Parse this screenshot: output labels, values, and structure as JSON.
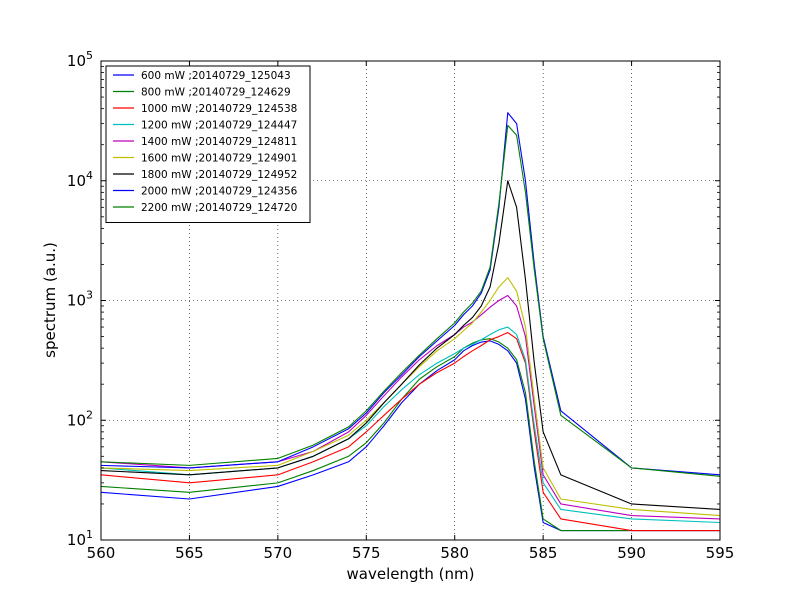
{
  "chart_data": {
    "type": "line",
    "title": "",
    "xlabel": "wavelength (nm)",
    "ylabel": "spectrum (a.u.)",
    "xlim": [
      560,
      595
    ],
    "ylim": [
      10,
      100000
    ],
    "yscale": "log",
    "grid": true,
    "legend_position": "top-left",
    "x_ticks": [
      560,
      565,
      570,
      575,
      580,
      585,
      590,
      595
    ],
    "y_ticks": [
      {
        "base": "10",
        "exp": "1",
        "value": 10
      },
      {
        "base": "10",
        "exp": "2",
        "value": 100
      },
      {
        "base": "10",
        "exp": "3",
        "value": 1000
      },
      {
        "base": "10",
        "exp": "4",
        "value": 10000
      },
      {
        "base": "10",
        "exp": "5",
        "value": 100000
      }
    ],
    "series": [
      {
        "name": "600 mW ;20140729_125043",
        "color": "#0000ff",
        "x": [
          560,
          565,
          570,
          572,
          574,
          575,
          576,
          577,
          578,
          579,
          580,
          580.5,
          581,
          581.5,
          582,
          582.5,
          583,
          583.5,
          584,
          584.5,
          585,
          586,
          590,
          595
        ],
        "y": [
          25,
          22,
          28,
          35,
          45,
          60,
          90,
          140,
          200,
          260,
          320,
          380,
          420,
          450,
          460,
          430,
          380,
          300,
          150,
          40,
          14,
          12,
          12,
          12
        ]
      },
      {
        "name": "800 mW ;20140729_124629",
        "color": "#008000",
        "x": [
          560,
          565,
          570,
          572,
          574,
          575,
          576,
          577,
          578,
          579,
          580,
          580.5,
          581,
          581.5,
          582,
          582.5,
          583,
          583.5,
          584,
          584.5,
          585,
          586,
          590,
          595
        ],
        "y": [
          28,
          25,
          30,
          38,
          50,
          65,
          95,
          150,
          220,
          280,
          340,
          400,
          440,
          470,
          480,
          450,
          400,
          320,
          170,
          45,
          15,
          12,
          12,
          12
        ]
      },
      {
        "name": "1000 mW ;20140729_124538",
        "color": "#ff0000",
        "x": [
          560,
          565,
          570,
          572,
          574,
          575,
          576,
          577,
          578,
          579,
          580,
          580.5,
          581,
          581.5,
          582,
          582.5,
          583,
          583.5,
          584,
          584.5,
          585,
          586,
          590,
          595
        ],
        "y": [
          35,
          30,
          35,
          45,
          60,
          80,
          110,
          150,
          200,
          250,
          300,
          340,
          380,
          420,
          470,
          500,
          540,
          480,
          300,
          80,
          25,
          15,
          12,
          12
        ]
      },
      {
        "name": "1200 mW ;20140729_124447",
        "color": "#00bfbf",
        "x": [
          560,
          565,
          570,
          572,
          574,
          575,
          576,
          577,
          578,
          579,
          580,
          580.5,
          581,
          581.5,
          582,
          582.5,
          583,
          583.5,
          584,
          584.5,
          585,
          586,
          590,
          595
        ],
        "y": [
          40,
          35,
          40,
          50,
          70,
          90,
          130,
          180,
          240,
          300,
          360,
          400,
          430,
          470,
          520,
          570,
          600,
          520,
          320,
          90,
          30,
          18,
          15,
          14
        ]
      },
      {
        "name": "1400 mW ;20140729_124811",
        "color": "#bf00bf",
        "x": [
          560,
          565,
          570,
          572,
          574,
          575,
          576,
          577,
          578,
          579,
          580,
          580.5,
          581,
          581.5,
          582,
          582.5,
          583,
          583.5,
          584,
          584.5,
          585,
          586,
          590,
          595
        ],
        "y": [
          45,
          40,
          45,
          55,
          80,
          110,
          160,
          230,
          320,
          420,
          520,
          600,
          660,
          760,
          880,
          1000,
          1100,
          900,
          500,
          130,
          35,
          20,
          16,
          15
        ]
      },
      {
        "name": "1600 mW ;20140729_124901",
        "color": "#bfbf00",
        "x": [
          560,
          565,
          570,
          572,
          574,
          575,
          576,
          577,
          578,
          579,
          580,
          580.5,
          581,
          581.5,
          582,
          582.5,
          583,
          583.5,
          584,
          584.5,
          585,
          586,
          590,
          595
        ],
        "y": [
          40,
          38,
          42,
          55,
          75,
          100,
          140,
          200,
          280,
          380,
          480,
          560,
          650,
          800,
          1000,
          1300,
          1550,
          1200,
          600,
          150,
          40,
          22,
          18,
          16
        ]
      },
      {
        "name": "1800 mW ;20140729_124952",
        "color": "#000000",
        "x": [
          560,
          565,
          570,
          572,
          574,
          575,
          576,
          577,
          578,
          579,
          580,
          580.5,
          581,
          581.5,
          582,
          582.5,
          583,
          583.5,
          584,
          584.5,
          585,
          586,
          590,
          595
        ],
        "y": [
          38,
          35,
          40,
          50,
          70,
          95,
          140,
          200,
          290,
          400,
          520,
          620,
          720,
          900,
          1300,
          3000,
          10000,
          6000,
          1500,
          300,
          80,
          35,
          20,
          18
        ]
      },
      {
        "name": "2000 mW ;20140729_124356",
        "color": "#0000ff",
        "x": [
          560,
          565,
          570,
          572,
          574,
          575,
          576,
          577,
          578,
          579,
          580,
          580.5,
          581,
          581.5,
          582,
          582.5,
          583,
          583.5,
          584,
          584.5,
          585,
          586,
          590,
          595
        ],
        "y": [
          42,
          40,
          45,
          60,
          85,
          115,
          170,
          240,
          340,
          460,
          620,
          760,
          900,
          1150,
          1800,
          6000,
          37000,
          30000,
          10000,
          2000,
          500,
          120,
          40,
          35
        ]
      },
      {
        "name": "2200 mW ;20140729_124720",
        "color": "#008000",
        "x": [
          560,
          565,
          570,
          572,
          574,
          575,
          576,
          577,
          578,
          579,
          580,
          580.5,
          581,
          581.5,
          582,
          582.5,
          583,
          583.5,
          584,
          584.5,
          585,
          586,
          590,
          595
        ],
        "y": [
          45,
          42,
          48,
          62,
          88,
          120,
          175,
          250,
          350,
          480,
          650,
          800,
          950,
          1200,
          1900,
          6500,
          29000,
          24000,
          8000,
          1800,
          480,
          110,
          40,
          34
        ]
      }
    ]
  }
}
